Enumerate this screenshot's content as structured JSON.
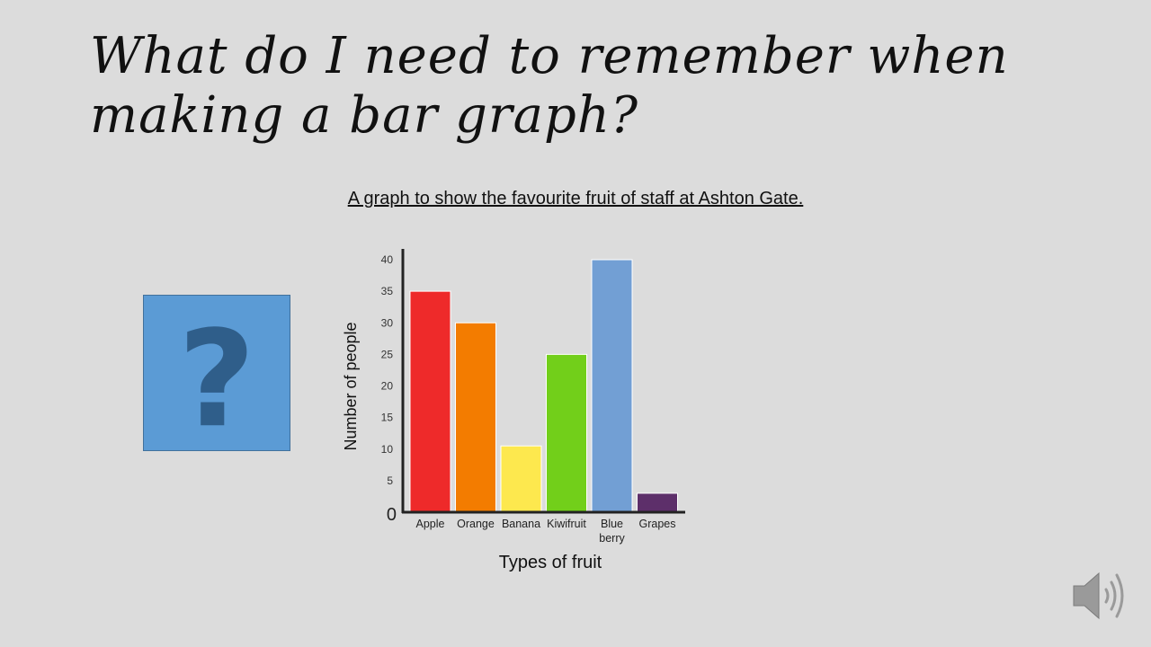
{
  "slide": {
    "title": "What do I need to remember when making a bar graph?",
    "chart_heading": "A graph to show the favourite fruit of staff at Ashton Gate.",
    "question_glyph": "?"
  },
  "icons": {
    "question": "question-mark-icon",
    "audio": "speaker-icon"
  },
  "chart_data": {
    "type": "bar",
    "title": "A graph to show the favourite fruit of staff at Ashton Gate.",
    "xlabel": "Types of fruit",
    "ylabel": "Number of people",
    "categories": [
      [
        "Apple"
      ],
      [
        "Orange"
      ],
      [
        "Banana"
      ],
      [
        "Kiwifruit"
      ],
      [
        "Blue",
        "berry"
      ],
      [
        "Grapes"
      ]
    ],
    "values": [
      35,
      30,
      10.5,
      25,
      40,
      3
    ],
    "colors": [
      "#ee2a2a",
      "#f37c00",
      "#fde84e",
      "#72cf1a",
      "#729fd4",
      "#5d2f6a"
    ],
    "ylim": [
      0,
      40
    ],
    "yticks": [
      5,
      10,
      15,
      20,
      25,
      30,
      35,
      40
    ],
    "zero_label": "0",
    "grid": false,
    "legend": "none"
  }
}
